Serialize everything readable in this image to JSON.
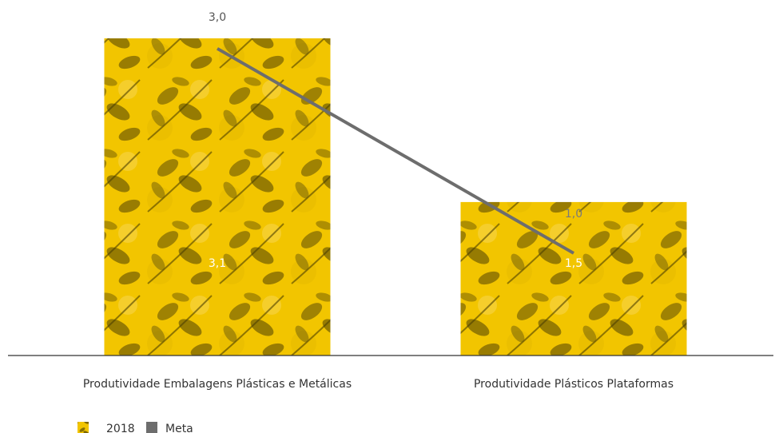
{
  "chart_data": {
    "type": "bar",
    "categories": [
      "Produtividade Embalagens Plásticas  e Metálicas",
      "Produtividade Plásticos Plataformas"
    ],
    "series": [
      {
        "name": "2018",
        "type": "bar",
        "values": [
          3.1,
          1.5
        ],
        "labels": [
          "3,1",
          "1,5"
        ],
        "color": "#f2c500",
        "pattern": "leaf-texture"
      },
      {
        "name": "Meta",
        "type": "line",
        "values": [
          3.0,
          1.0
        ],
        "labels": [
          "3,0",
          "1,0"
        ],
        "color": "#6d6d6d"
      }
    ],
    "legend": {
      "position": "bottom-left",
      "entries": [
        "2018",
        "Meta"
      ]
    },
    "grid": false,
    "axis_line": true
  }
}
